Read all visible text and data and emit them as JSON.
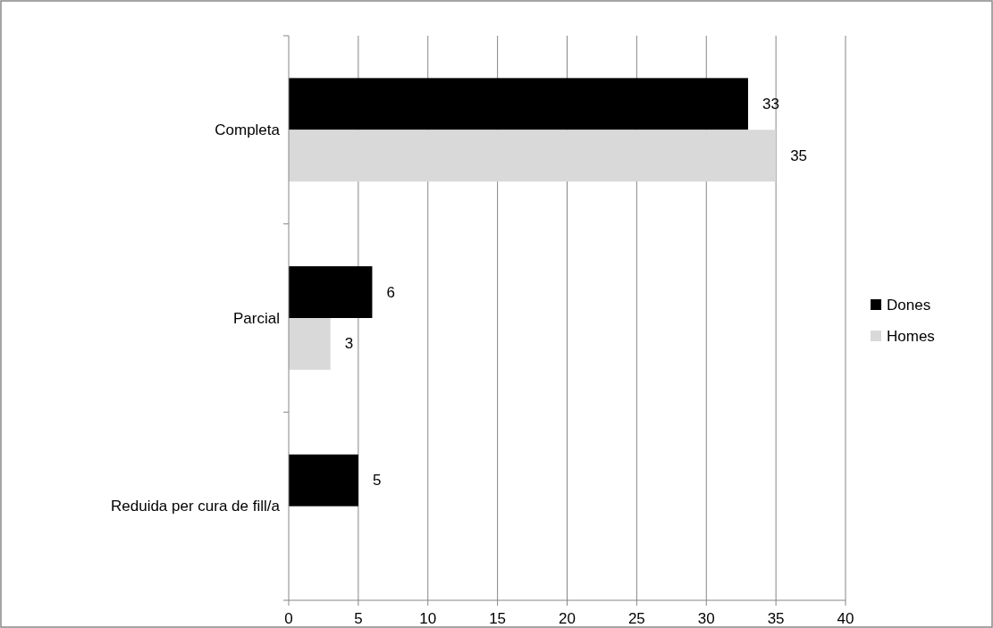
{
  "chart_data": {
    "type": "bar",
    "orientation": "horizontal",
    "categories": [
      "Completa",
      "Parcial",
      "Reduida per cura de fill/a"
    ],
    "series": [
      {
        "name": "Dones",
        "color": "#000000",
        "values": [
          33,
          6,
          5
        ]
      },
      {
        "name": "Homes",
        "color": "#d9d9d9",
        "values": [
          35,
          3,
          null
        ]
      }
    ],
    "xlim": [
      0,
      40
    ],
    "xticks": [
      0,
      5,
      10,
      15,
      20,
      25,
      30,
      35,
      40
    ],
    "grid": "x",
    "legend": "right",
    "data_labels": true
  }
}
